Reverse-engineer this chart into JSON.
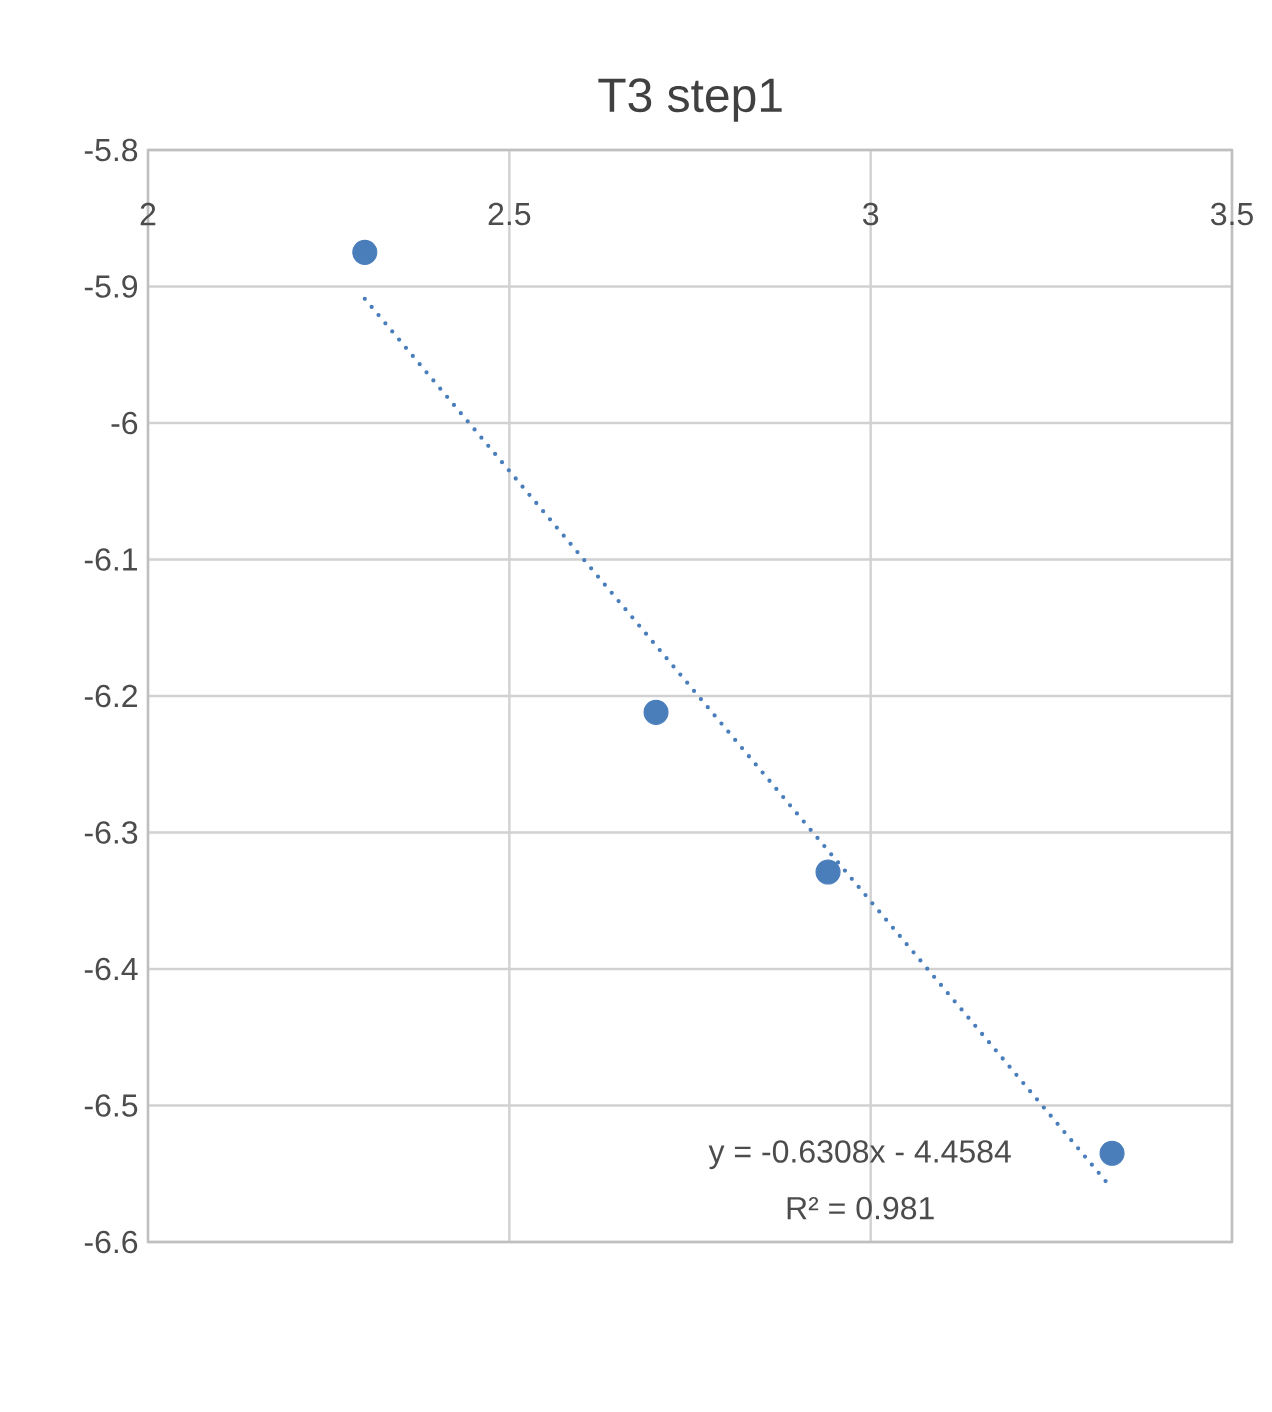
{
  "chart_data": {
    "type": "scatter",
    "title": "T3 step1",
    "xlim": [
      2,
      3.5
    ],
    "ylim": [
      -6.6,
      -5.8
    ],
    "xticks": [
      2,
      2.5,
      3,
      3.5
    ],
    "yticks": [
      -5.8,
      -5.9,
      -6,
      -6.1,
      -6.2,
      -6.3,
      -6.4,
      -6.5,
      -6.6
    ],
    "grid": true,
    "series": [
      {
        "color": "#4a7ebb",
        "marker": "circle",
        "x": [
          2.3,
          2.703,
          2.941,
          3.334
        ],
        "values": [
          -5.875,
          -6.212,
          -6.329,
          -6.535
        ]
      },
      {
        "type": "line",
        "color": "#4a7ebb",
        "marker": "none",
        "line_style": "dotted",
        "x": [
          2.3,
          3.334
        ],
        "values": [
          -5.909,
          -6.561
        ]
      }
    ],
    "annotations": [
      "y = -0.6308x - 4.4584",
      "R² = 0.981"
    ]
  }
}
